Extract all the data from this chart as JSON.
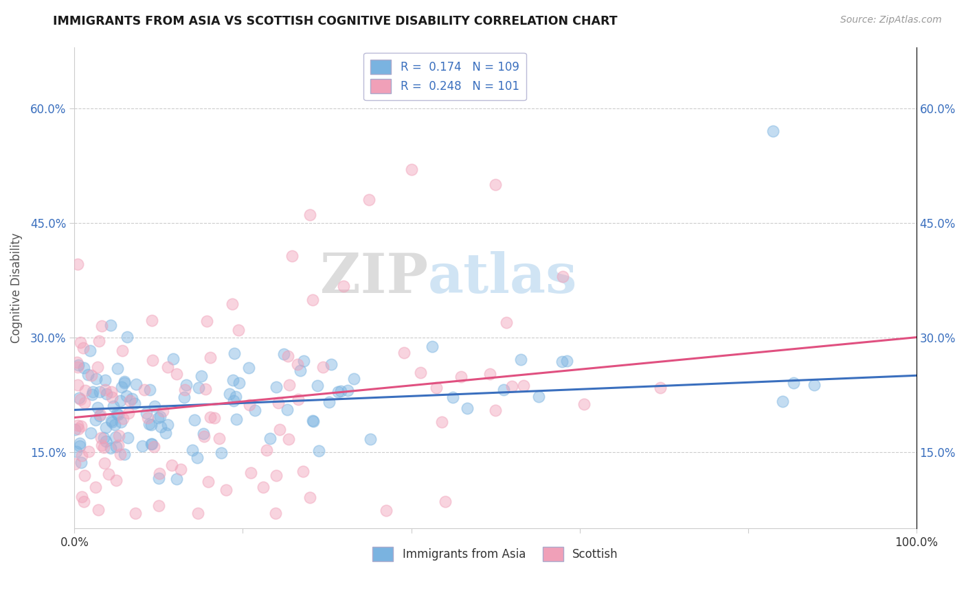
{
  "title": "IMMIGRANTS FROM ASIA VS SCOTTISH COGNITIVE DISABILITY CORRELATION CHART",
  "source": "Source: ZipAtlas.com",
  "ylabel": "Cognitive Disability",
  "xlim": [
    0,
    100
  ],
  "ylim": [
    5,
    68
  ],
  "ytick_values": [
    15,
    30,
    45,
    60
  ],
  "grid_color": "#cccccc",
  "blue_color": "#7ab3e0",
  "pink_color": "#f0a0b8",
  "blue_line_color": "#3a6fbe",
  "pink_line_color": "#e05080",
  "R_blue": 0.174,
  "N_blue": 109,
  "R_pink": 0.248,
  "N_pink": 101,
  "watermark_zip": "ZIP",
  "watermark_atlas": "atlas",
  "blue_intercept": 20.5,
  "blue_slope": 0.045,
  "pink_intercept": 19.5,
  "pink_slope": 0.105
}
